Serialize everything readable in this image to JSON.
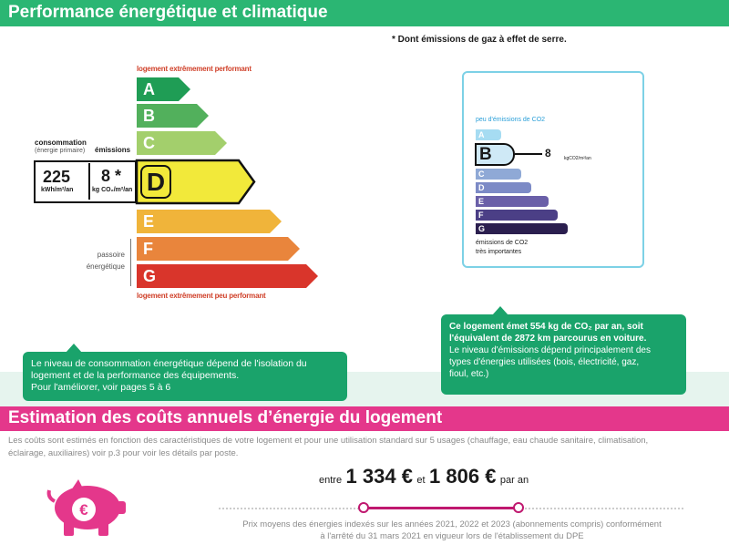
{
  "header": {
    "title": "Performance énergétique et climatique"
  },
  "footnote": "* Dont émissions de gaz à effet de serre.",
  "dpe": {
    "top_label": "logement extrêmement performant",
    "bottom_label": "logement extrêmement peu performant",
    "consumption_label": "consommation",
    "primary_label": "(énergie primaire)",
    "emissions_label": "émissions",
    "consumption_value": "225",
    "consumption_unit": "kWh/m²/an",
    "emissions_value": "8 *",
    "emissions_unit": "kg CO₂/m²/an",
    "current_class": "D",
    "passoire": [
      "passoire",
      "énergétique"
    ],
    "classes": [
      {
        "letter": "A",
        "color": "#1f9d55"
      },
      {
        "letter": "B",
        "color": "#52b05c"
      },
      {
        "letter": "C",
        "color": "#a3cf6c"
      },
      {
        "letter": "D",
        "color": "#f2e93a"
      },
      {
        "letter": "E",
        "color": "#f0b43a"
      },
      {
        "letter": "F",
        "color": "#e9853c"
      },
      {
        "letter": "G",
        "color": "#d9352b"
      }
    ]
  },
  "co2": {
    "top_label": "peu d'émissions de CO2",
    "bottom_label_1": "émissions de CO2",
    "bottom_label_2": "très importantes",
    "value": "8",
    "unit": "kgCO2/m²/an",
    "current_class": "B",
    "classes": [
      {
        "letter": "A",
        "color": "#a6dcf2"
      },
      {
        "letter": "B",
        "color": "#cfe9f6"
      },
      {
        "letter": "C",
        "color": "#8fa9d6"
      },
      {
        "letter": "D",
        "color": "#7c8ac6"
      },
      {
        "letter": "E",
        "color": "#6a5fa8"
      },
      {
        "letter": "F",
        "color": "#4b3f86"
      },
      {
        "letter": "G",
        "color": "#2b1f4f"
      }
    ]
  },
  "callout_right": {
    "line1": "Ce logement émet 554  kg de CO₂ par an, soit",
    "line2": "l'équivalent de 2872 km parcourus en voiture.",
    "line3": "Le niveau d'émissions dépend principalement des",
    "line4": "types d'énergies utilisées (bois, électricité, gaz,",
    "line5": "fioul, etc.)"
  },
  "callout_left": {
    "line1": "Le niveau de consommation énergétique dépend de l'isolation du",
    "line2": "logement et de la performance des équipements.",
    "line3": "Pour l'améliorer, voir pages 5 à 6"
  },
  "costs": {
    "title": "Estimation des coûts annuels d’énergie du logement",
    "desc1": "Les coûts sont estimés en fonction des caractéristiques de votre logement et pour une utilisation standard sur 5 usages (chauffage, eau chaude sanitaire, climatisation,",
    "desc2": "éclairage, auxiliaires) voir p.3 pour voir les détails par poste.",
    "between": "entre",
    "min": "1 334 €",
    "and": "et",
    "max": "1 806 €",
    "per_year": "par an",
    "prices1": "Prix moyens des énergies indexés sur les années 2021, 2022 et 2023  (abonnements compris) conformément",
    "prices2": "à l'arrêté du 31 mars 2021 en vigueur lors de l'établissement du DPE",
    "pig_symbol": "€",
    "pink": "#e4378b"
  }
}
